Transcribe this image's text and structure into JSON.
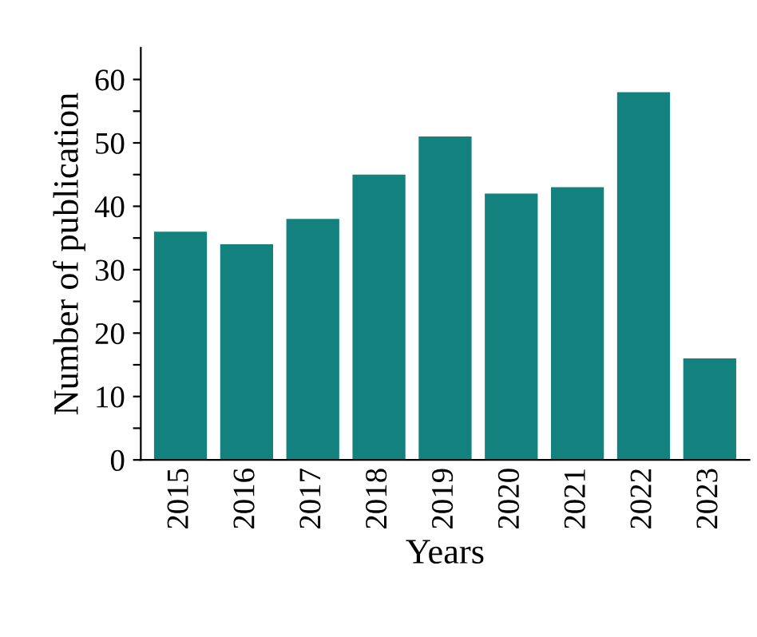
{
  "chart_data": {
    "type": "bar",
    "xlabel": "Years",
    "ylabel": "Number of publication",
    "categories": [
      "2015",
      "2016",
      "2017",
      "2018",
      "2019",
      "2020",
      "2021",
      "2022",
      "2023"
    ],
    "values": [
      36,
      34,
      38,
      45,
      51,
      42,
      43,
      58,
      16
    ],
    "color": "#13827f",
    "ylim": [
      0,
      65
    ],
    "yticks": [
      0,
      {
        "value": 5,
        "label": null
      },
      10,
      {
        "value": 15,
        "label": null
      },
      20,
      {
        "value": 25,
        "label": null
      },
      30,
      {
        "value": 35,
        "label": null
      },
      40,
      {
        "value": 45,
        "label": null
      },
      50,
      {
        "value": 55,
        "label": null
      },
      60
    ],
    "grid": false
  }
}
